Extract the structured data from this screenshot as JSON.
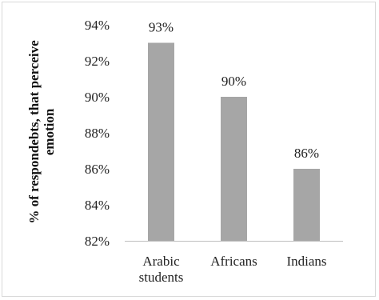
{
  "chart_data": {
    "type": "bar",
    "title": "",
    "xlabel": "",
    "ylabel": "% of respondebts, that perceive emotion",
    "ylabel_lines": [
      "% of respondebts, that perceive",
      "emotion"
    ],
    "categories": [
      "Arabic students",
      "Africans",
      "Indians"
    ],
    "category_lines": [
      [
        "Arabic",
        "students"
      ],
      [
        "Africans"
      ],
      [
        "Indians"
      ]
    ],
    "values": [
      93,
      90,
      86
    ],
    "data_labels": [
      "93%",
      "90%",
      "86%"
    ],
    "ylim": [
      82,
      94
    ],
    "yticks": [
      82,
      84,
      86,
      88,
      90,
      92,
      94
    ],
    "ytick_labels": [
      "82%",
      "84%",
      "86%",
      "88%",
      "90%",
      "92%",
      "94%"
    ],
    "grid": false,
    "legend": "none",
    "bar_color": "#a6a6a6",
    "axis_color": "#bfbfbf"
  }
}
